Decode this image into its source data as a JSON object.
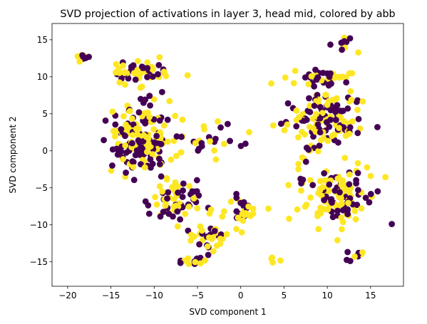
{
  "chart_data": {
    "type": "scatter",
    "title": "SVD projection of activations in layer 3, head mid, colored by abb",
    "xlabel": "SVD component 1",
    "ylabel": "SVD component 2",
    "xlim": [
      -21.8,
      18.8
    ],
    "ylim": [
      -18.3,
      17.2
    ],
    "xticks": [
      -20,
      -15,
      -10,
      -5,
      0,
      5,
      10,
      15
    ],
    "yticks": [
      -15,
      -10,
      -5,
      0,
      5,
      10,
      15
    ],
    "grid": false,
    "legend": "none",
    "colors": {
      "class0": "#440154",
      "class1": "#fde725"
    },
    "clusters": [
      {
        "center": [
          -11.5,
          1.5
        ],
        "spread": [
          3.2,
          4.5
        ],
        "count": 190,
        "frac_class1": 0.52
      },
      {
        "center": [
          -11.5,
          10.8
        ],
        "spread": [
          3.0,
          1.3
        ],
        "count": 55,
        "frac_class1": 0.48
      },
      {
        "center": [
          -18.5,
          12.6
        ],
        "spread": [
          0.8,
          0.4
        ],
        "count": 10,
        "frac_class1": 0.5
      },
      {
        "center": [
          -7.5,
          -7.0
        ],
        "spread": [
          2.5,
          2.2
        ],
        "count": 70,
        "frac_class1": 0.5
      },
      {
        "center": [
          -4.0,
          -11.5
        ],
        "spread": [
          2.0,
          1.6
        ],
        "count": 35,
        "frac_class1": 0.55
      },
      {
        "center": [
          -6.0,
          -15.0
        ],
        "spread": [
          1.2,
          0.9
        ],
        "count": 12,
        "frac_class1": 0.6
      },
      {
        "center": [
          0.5,
          -8.0
        ],
        "spread": [
          1.8,
          1.6
        ],
        "count": 30,
        "frac_class1": 0.55
      },
      {
        "center": [
          -3.0,
          1.5
        ],
        "spread": [
          3.0,
          2.0
        ],
        "count": 25,
        "frac_class1": 0.5
      },
      {
        "center": [
          9.5,
          4.0
        ],
        "spread": [
          4.0,
          3.2
        ],
        "count": 140,
        "frac_class1": 0.5
      },
      {
        "center": [
          9.5,
          10.0
        ],
        "spread": [
          3.0,
          1.0
        ],
        "count": 40,
        "frac_class1": 0.45
      },
      {
        "center": [
          12.0,
          14.5
        ],
        "spread": [
          1.4,
          1.0
        ],
        "count": 12,
        "frac_class1": 0.3
      },
      {
        "center": [
          11.0,
          -6.0
        ],
        "spread": [
          3.8,
          3.0
        ],
        "count": 130,
        "frac_class1": 0.6
      },
      {
        "center": [
          13.5,
          -14.0
        ],
        "spread": [
          1.2,
          0.8
        ],
        "count": 10,
        "frac_class1": 0.6
      },
      {
        "center": [
          4.0,
          -14.5
        ],
        "spread": [
          0.8,
          0.6
        ],
        "count": 4,
        "frac_class1": 0.8
      }
    ]
  }
}
